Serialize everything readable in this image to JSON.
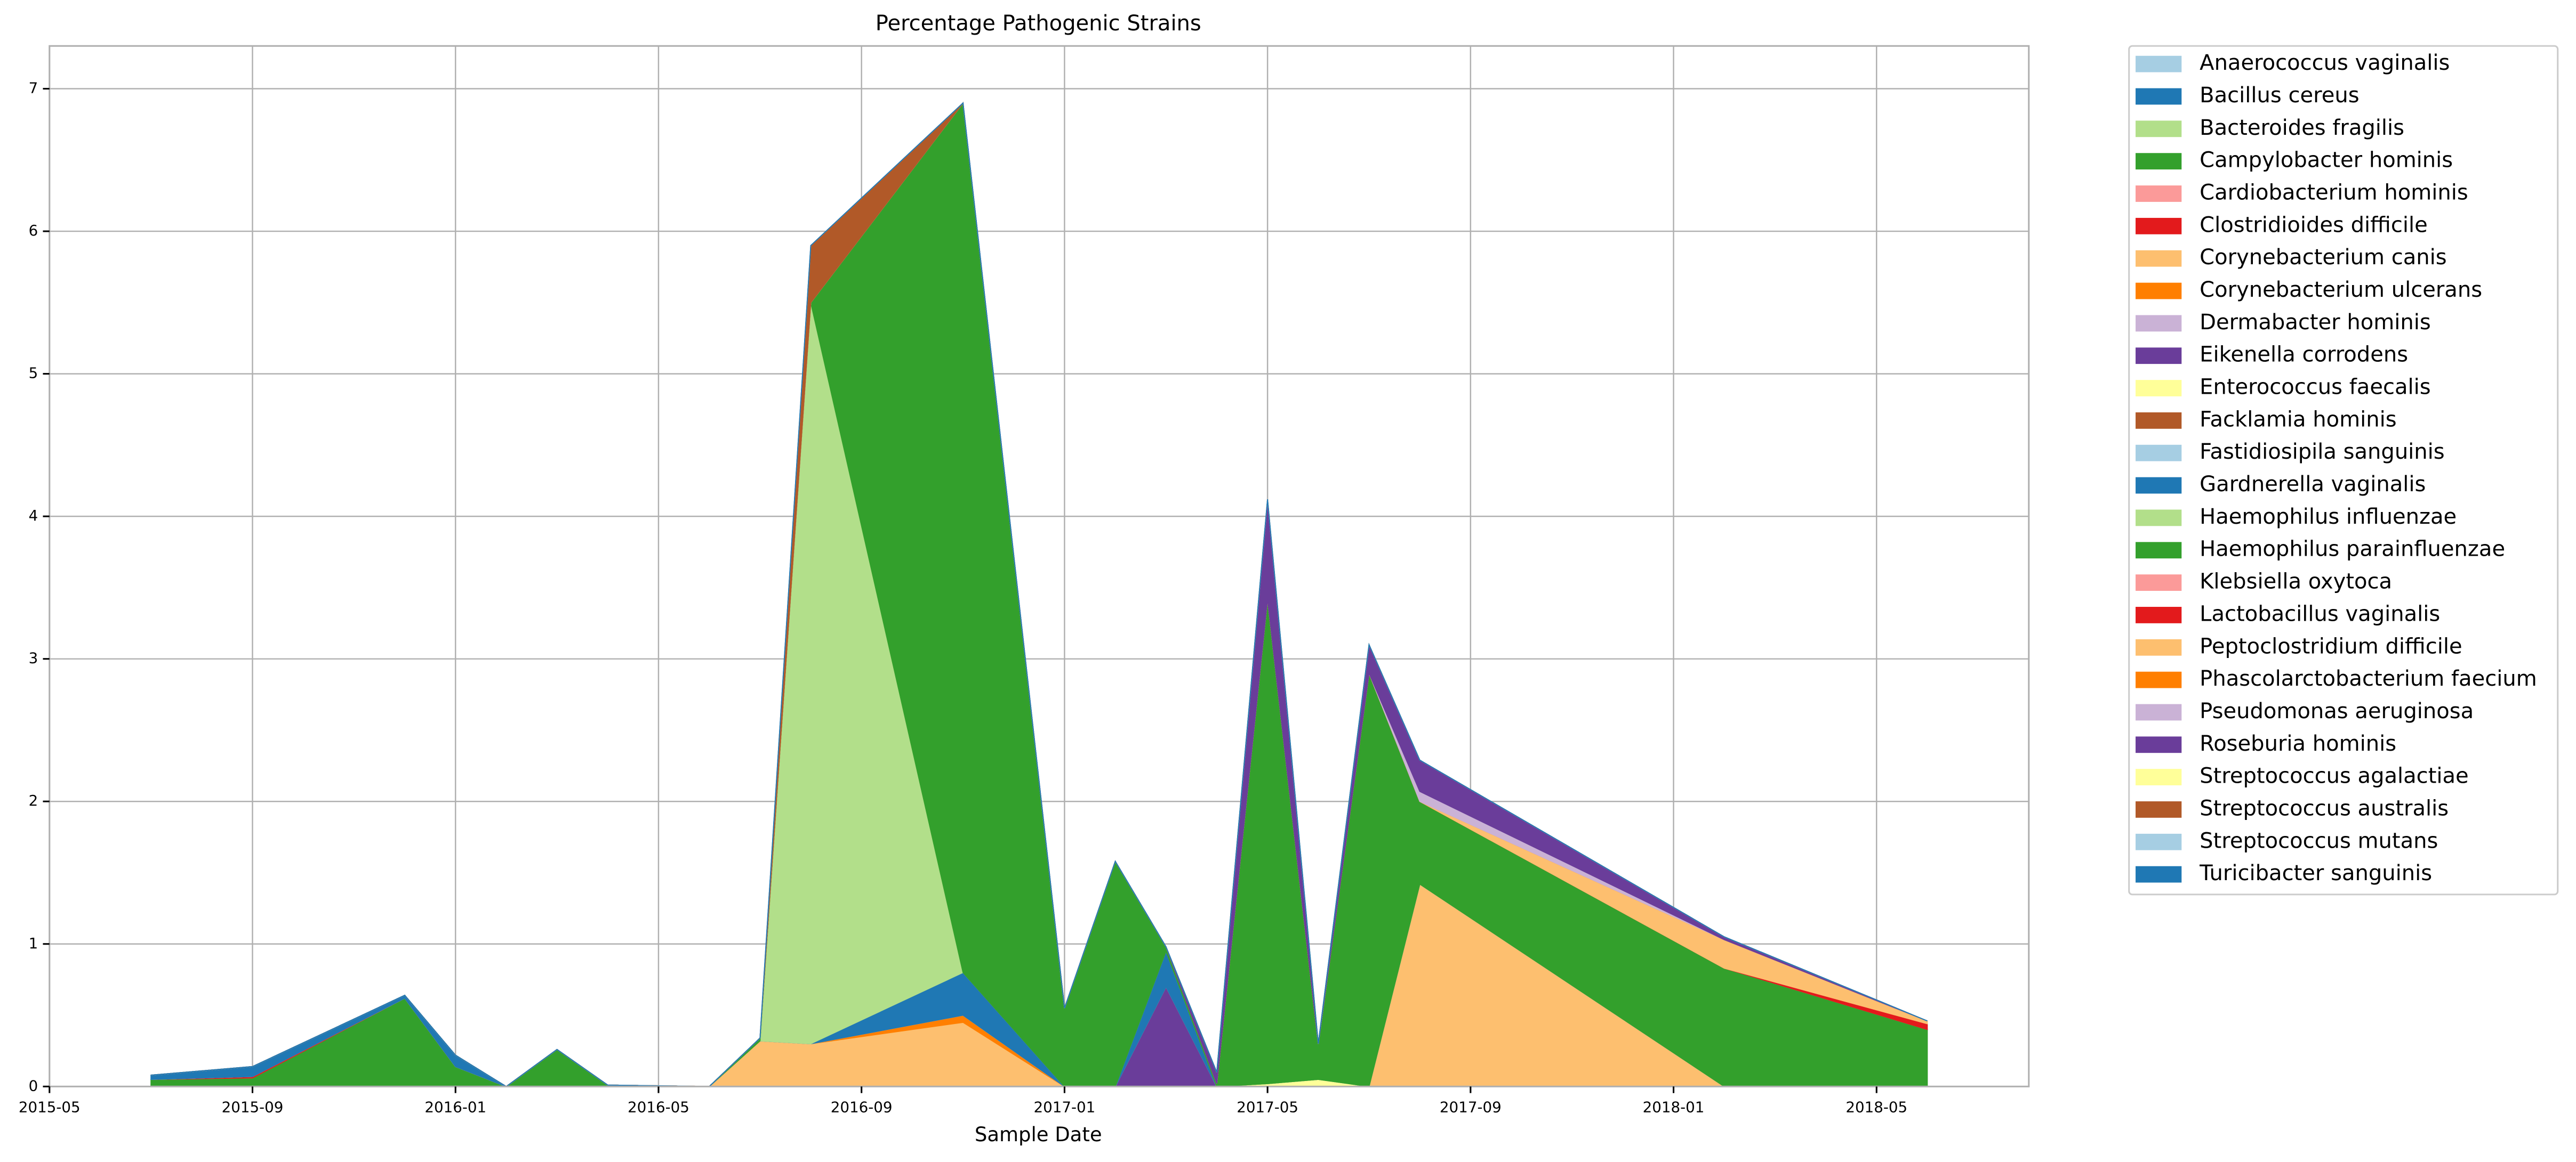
{
  "chart_data": {
    "type": "stacked-area",
    "title": "Percentage Pathogenic Strains",
    "x_label": "Sample Date",
    "x": [
      "2015-07",
      "2015-09",
      "2015-12",
      "2016-01",
      "2016-02",
      "2016-03",
      "2016-04",
      "2016-06",
      "2016-07",
      "2016-08",
      "2016-11",
      "2017-01",
      "2017-02",
      "2017-03",
      "2017-04",
      "2017-05",
      "2017-06",
      "2017-07",
      "2017-08",
      "2018-02",
      "2018-06"
    ],
    "xlim": [
      "2015-05",
      "2018-08"
    ],
    "xticks": [
      "2015-05",
      "2015-09",
      "2016-01",
      "2016-05",
      "2016-09",
      "2017-01",
      "2017-05",
      "2017-09",
      "2018-01",
      "2018-05"
    ],
    "ylim": [
      0,
      7.3
    ],
    "yticks": [
      0,
      1,
      2,
      3,
      4,
      5,
      6,
      7
    ],
    "grid": true,
    "legend": "outside-right",
    "series": [
      {
        "name": "Anaerococcus vaginalis",
        "color": "#a6cee3",
        "values": [
          0,
          0,
          0,
          0,
          0,
          0,
          0,
          0,
          0,
          0,
          0,
          0,
          0,
          0,
          0,
          0,
          0,
          0,
          0,
          0,
          0
        ]
      },
      {
        "name": "Bacillus cereus",
        "color": "#1f78b4",
        "values": [
          0,
          0,
          0,
          0,
          0,
          0,
          0,
          0,
          0,
          0,
          0,
          0,
          0,
          0,
          0,
          0,
          0,
          0,
          0,
          0,
          0
        ]
      },
      {
        "name": "Bacteroides fragilis",
        "color": "#b2df8a",
        "values": [
          0,
          0,
          0,
          0,
          0,
          0,
          0,
          0,
          0,
          0,
          0,
          0,
          0,
          0,
          0,
          0,
          0,
          0,
          0,
          0,
          0
        ]
      },
      {
        "name": "Campylobacter hominis",
        "color": "#33a02c",
        "values": [
          0.05,
          0.06,
          0.62,
          0.14,
          0,
          0.26,
          0.01,
          0,
          0,
          0,
          0,
          0,
          0,
          0,
          0,
          0,
          0,
          0,
          0,
          0,
          0
        ]
      },
      {
        "name": "Cardiobacterium hominis",
        "color": "#fb9a99",
        "values": [
          0,
          0,
          0,
          0,
          0,
          0,
          0,
          0,
          0,
          0,
          0,
          0,
          0,
          0,
          0,
          0,
          0,
          0,
          0,
          0,
          0
        ]
      },
      {
        "name": "Clostridioides difficile",
        "color": "#e31a1c",
        "values": [
          0,
          0.01,
          0,
          0,
          0,
          0,
          0,
          0,
          0,
          0,
          0,
          0,
          0,
          0,
          0,
          0,
          0,
          0,
          0,
          0,
          0
        ]
      },
      {
        "name": "Corynebacterium canis",
        "color": "#fdbf6f",
        "values": [
          0,
          0,
          0,
          0,
          0,
          0,
          0,
          0,
          0.32,
          0.3,
          0.45,
          0,
          0,
          0,
          0,
          0,
          0,
          0,
          1.42,
          0,
          0
        ]
      },
      {
        "name": "Corynebacterium ulcerans",
        "color": "#ff7f00",
        "values": [
          0,
          0,
          0,
          0,
          0,
          0,
          0,
          0,
          0,
          0,
          0.05,
          0,
          0,
          0,
          0,
          0,
          0,
          0,
          0,
          0,
          0
        ]
      },
      {
        "name": "Dermabacter hominis",
        "color": "#cab2d6",
        "values": [
          0,
          0,
          0,
          0,
          0,
          0,
          0,
          0,
          0,
          0,
          0,
          0,
          0,
          0,
          0,
          0,
          0,
          0,
          0,
          0,
          0
        ]
      },
      {
        "name": "Eikenella corrodens",
        "color": "#6a3d9a",
        "values": [
          0,
          0,
          0,
          0,
          0,
          0,
          0,
          0,
          0,
          0,
          0,
          0,
          0,
          0.7,
          0,
          0,
          0,
          0,
          0,
          0,
          0
        ]
      },
      {
        "name": "Enterococcus faecalis",
        "color": "#ffff99",
        "values": [
          0,
          0,
          0,
          0,
          0,
          0,
          0,
          0,
          0,
          0,
          0,
          0,
          0,
          0,
          0,
          0.02,
          0.05,
          0,
          0,
          0,
          0
        ]
      },
      {
        "name": "Facklamia hominis",
        "color": "#b15928",
        "values": [
          0,
          0,
          0,
          0,
          0,
          0,
          0,
          0,
          0,
          0,
          0,
          0,
          0,
          0,
          0,
          0,
          0,
          0,
          0,
          0,
          0
        ]
      },
      {
        "name": "Fastidiosipila sanguinis",
        "color": "#a6cee3",
        "values": [
          0,
          0,
          0,
          0,
          0,
          0,
          0,
          0,
          0,
          0,
          0,
          0,
          0,
          0,
          0,
          0,
          0,
          0,
          0,
          0,
          0
        ]
      },
      {
        "name": "Gardnerella vaginalis",
        "color": "#1f78b4",
        "values": [
          0.03,
          0.07,
          0.02,
          0.08,
          0,
          0,
          0,
          0,
          0,
          0,
          0.3,
          0,
          0,
          0.25,
          0,
          0,
          0,
          0,
          0,
          0,
          0
        ]
      },
      {
        "name": "Haemophilus influenzae",
        "color": "#b2df8a",
        "values": [
          0,
          0,
          0,
          0,
          0,
          0,
          0,
          0,
          0,
          5.2,
          0,
          0,
          0,
          0,
          0,
          0,
          0,
          0,
          0,
          0,
          0
        ]
      },
      {
        "name": "Haemophilus parainfluenzae",
        "color": "#33a02c",
        "values": [
          0,
          0,
          0,
          0,
          0,
          0,
          0,
          0,
          0.02,
          0,
          6.1,
          0.55,
          1.58,
          0.03,
          0.02,
          3.4,
          0.25,
          2.9,
          0.58,
          0.83,
          0.4
        ]
      },
      {
        "name": "Klebsiella oxytoca",
        "color": "#fb9a99",
        "values": [
          0,
          0,
          0,
          0,
          0,
          0,
          0,
          0,
          0,
          0,
          0,
          0,
          0,
          0,
          0,
          0,
          0,
          0,
          0,
          0,
          0
        ]
      },
      {
        "name": "Lactobacillus vaginalis",
        "color": "#e31a1c",
        "values": [
          0,
          0,
          0,
          0,
          0,
          0,
          0,
          0,
          0,
          0,
          0,
          0,
          0,
          0,
          0,
          0,
          0,
          0,
          0,
          0,
          0.04
        ]
      },
      {
        "name": "Peptoclostridium difficile",
        "color": "#fdbf6f",
        "values": [
          0,
          0,
          0,
          0,
          0,
          0,
          0,
          0,
          0,
          0,
          0,
          0,
          0,
          0,
          0,
          0,
          0,
          0,
          0,
          0.2,
          0.02
        ]
      },
      {
        "name": "Phascolarctobacterium faecium",
        "color": "#ff7f00",
        "values": [
          0,
          0,
          0,
          0,
          0,
          0,
          0,
          0,
          0,
          0,
          0,
          0,
          0,
          0,
          0,
          0,
          0,
          0,
          0,
          0,
          0
        ]
      },
      {
        "name": "Pseudomonas aeruginosa",
        "color": "#cab2d6",
        "values": [
          0,
          0,
          0,
          0,
          0,
          0,
          0,
          0,
          0,
          0,
          0,
          0,
          0,
          0,
          0,
          0,
          0,
          0,
          0.07,
          0,
          0
        ]
      },
      {
        "name": "Roseburia hominis",
        "color": "#6a3d9a",
        "values": [
          0,
          0,
          0,
          0,
          0,
          0,
          0,
          0,
          0,
          0,
          0,
          0,
          0,
          0,
          0.08,
          0.7,
          0,
          0.2,
          0.22,
          0.02,
          0
        ]
      },
      {
        "name": "Streptococcus agalactiae",
        "color": "#ffff99",
        "values": [
          0,
          0,
          0,
          0,
          0,
          0,
          0,
          0,
          0,
          0,
          0,
          0,
          0,
          0,
          0,
          0,
          0,
          0,
          0,
          0,
          0
        ]
      },
      {
        "name": "Streptococcus australis",
        "color": "#b15928",
        "values": [
          0,
          0,
          0,
          0,
          0,
          0,
          0,
          0,
          0,
          0.4,
          0,
          0,
          0,
          0,
          0,
          0,
          0,
          0,
          0,
          0,
          0
        ]
      },
      {
        "name": "Streptococcus mutans",
        "color": "#a6cee3",
        "values": [
          0,
          0,
          0,
          0,
          0,
          0,
          0,
          0,
          0,
          0,
          0,
          0,
          0,
          0,
          0,
          0,
          0,
          0,
          0,
          0,
          0
        ]
      },
      {
        "name": "Turicibacter sanguinis",
        "color": "#1f78b4",
        "values": [
          0,
          0,
          0,
          0,
          0,
          0,
          0,
          0,
          0,
          0,
          0,
          0,
          0,
          0,
          0,
          0,
          0,
          0,
          0,
          0,
          0
        ]
      }
    ]
  }
}
